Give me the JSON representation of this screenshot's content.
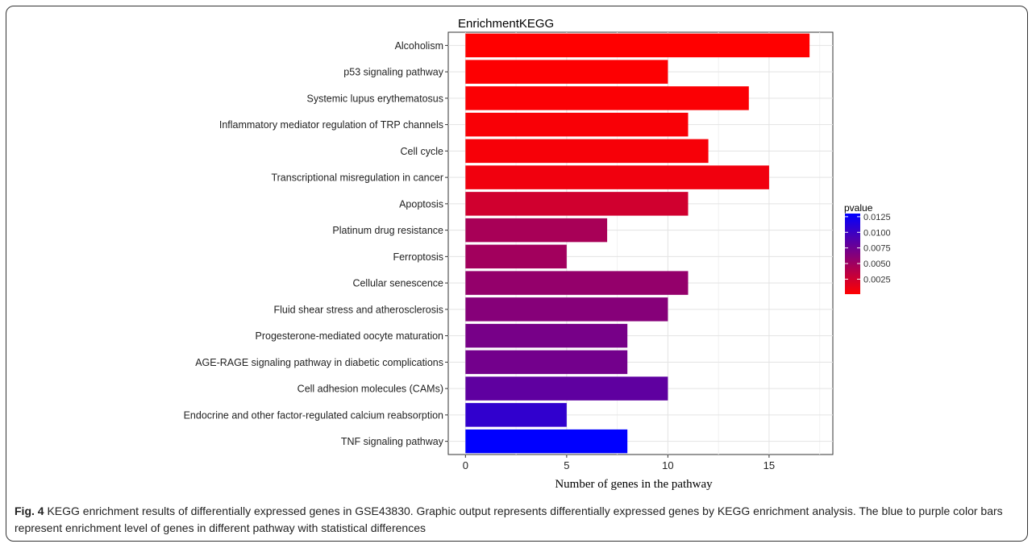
{
  "caption": {
    "label": "Fig. 4",
    "text": " KEGG enrichment results of differentially expressed genes in GSE43830. Graphic output represents differentially expressed genes by KEGG enrichment analysis. The blue to purple color bars represent enrichment level of genes in different pathway with statistical differences"
  },
  "chart_data": {
    "type": "bar",
    "orientation": "horizontal",
    "title": "EnrichmentKEGG",
    "xlabel": "Number of genes in the pathway",
    "ylabel": "",
    "xlim": [
      0,
      17.5
    ],
    "xticks": [
      0,
      5,
      10,
      15
    ],
    "grid": true,
    "categories": [
      "Alcoholism",
      "p53 signaling pathway",
      "Systemic lupus erythematosus",
      "Inflammatory mediator regulation of TRP channels",
      "Cell cycle",
      "Transcriptional misregulation in cancer",
      "Apoptosis",
      "Platinum drug resistance",
      "Ferroptosis",
      "Cellular senescence",
      "Fluid shear stress and atherosclerosis",
      "Progesterone-mediated oocyte maturation",
      "AGE-RAGE signaling pathway in diabetic complications",
      "Cell adhesion molecules (CAMs)",
      "Endocrine and other factor-regulated calcium reabsorption",
      "TNF signaling pathway"
    ],
    "values": [
      17,
      10,
      14,
      11,
      12,
      15,
      11,
      7,
      5,
      11,
      10,
      8,
      8,
      10,
      5,
      8
    ],
    "pvalues": [
      0.0001,
      0.0002,
      0.0003,
      0.0004,
      0.0005,
      0.0008,
      0.0025,
      0.0045,
      0.0048,
      0.0055,
      0.0062,
      0.007,
      0.0072,
      0.0082,
      0.0105,
      0.013
    ],
    "color_scale": {
      "title": "pvalue",
      "low_color": "#ff0000",
      "high_color": "#0000ff",
      "range": [
        0.0001,
        0.013
      ],
      "ticks": [
        "0.0125",
        "0.0100",
        "0.0075",
        "0.0050",
        "0.0025"
      ],
      "tick_values": [
        0.0125,
        0.01,
        0.0075,
        0.005,
        0.0025
      ],
      "placement": "right"
    }
  }
}
